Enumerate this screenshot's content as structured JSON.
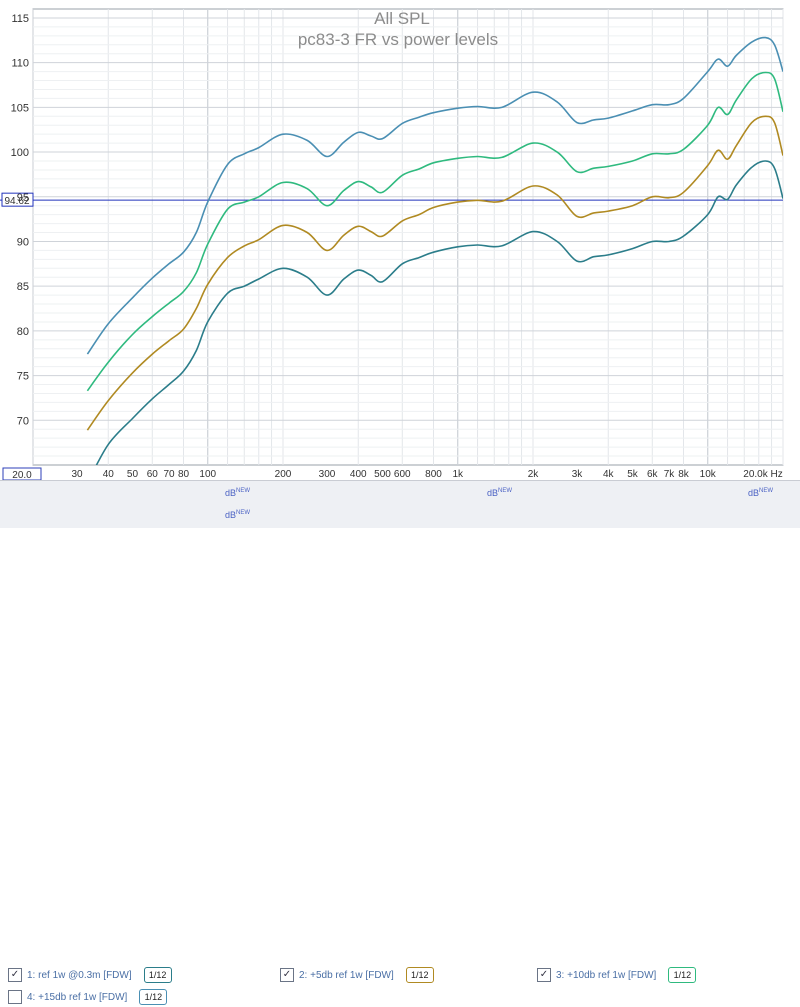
{
  "title": "All SPL",
  "subtitle": "pc83-3 FR vs power levels",
  "chart_data": {
    "type": "line",
    "title": "All SPL",
    "subtitle": "pc83-3 FR vs power levels",
    "xscale": "log",
    "xlim": [
      20,
      20000
    ],
    "ylim": [
      65,
      116
    ],
    "yticks": [
      70,
      75,
      80,
      85,
      90,
      95,
      100,
      105,
      110,
      115
    ],
    "xticks": [
      {
        "v": 30,
        "t": "30"
      },
      {
        "v": 40,
        "t": "40"
      },
      {
        "v": 50,
        "t": "50"
      },
      {
        "v": 60,
        "t": "60"
      },
      {
        "v": 70,
        "t": "70"
      },
      {
        "v": 80,
        "t": "80"
      },
      {
        "v": 100,
        "t": "100"
      },
      {
        "v": 200,
        "t": "200"
      },
      {
        "v": 300,
        "t": "300"
      },
      {
        "v": 400,
        "t": "400"
      },
      {
        "v": 500,
        "t": "500"
      },
      {
        "v": 600,
        "t": "600"
      },
      {
        "v": 800,
        "t": "800"
      },
      {
        "v": 1000,
        "t": "1k"
      },
      {
        "v": 2000,
        "t": "2k"
      },
      {
        "v": 3000,
        "t": "3k"
      },
      {
        "v": 4000,
        "t": "4k"
      },
      {
        "v": 5000,
        "t": "5k"
      },
      {
        "v": 6000,
        "t": "6k"
      },
      {
        "v": 7000,
        "t": "7k"
      },
      {
        "v": 8000,
        "t": "8k"
      },
      {
        "v": 10000,
        "t": "10k"
      },
      {
        "v": 20000,
        "t": "20.0k Hz"
      }
    ],
    "x_start_label": "20.0",
    "cursor_value": 94.62,
    "cursor_label": "94.62",
    "grid": true,
    "legend_position": "bottom",
    "series": [
      {
        "name": "1: ref 1w @0.3m [FDW]",
        "color": "#2b7d8a",
        "points": [
          [
            33,
            63.0
          ],
          [
            40,
            67.3
          ],
          [
            50,
            70.2
          ],
          [
            60,
            72.4
          ],
          [
            70,
            74.0
          ],
          [
            80,
            75.5
          ],
          [
            90,
            77.8
          ],
          [
            100,
            81.0
          ],
          [
            120,
            84.2
          ],
          [
            140,
            85.0
          ],
          [
            160,
            85.8
          ],
          [
            200,
            87.0
          ],
          [
            250,
            86.0
          ],
          [
            300,
            84.0
          ],
          [
            350,
            85.8
          ],
          [
            400,
            86.8
          ],
          [
            450,
            86.2
          ],
          [
            500,
            85.5
          ],
          [
            600,
            87.5
          ],
          [
            700,
            88.2
          ],
          [
            800,
            88.8
          ],
          [
            1000,
            89.4
          ],
          [
            1200,
            89.6
          ],
          [
            1500,
            89.5
          ],
          [
            2000,
            91.1
          ],
          [
            2500,
            90.0
          ],
          [
            3000,
            87.8
          ],
          [
            3500,
            88.3
          ],
          [
            4000,
            88.5
          ],
          [
            5000,
            89.2
          ],
          [
            6000,
            90.0
          ],
          [
            7000,
            90.0
          ],
          [
            8000,
            90.6
          ],
          [
            10000,
            93.0
          ],
          [
            11000,
            95.0
          ],
          [
            12000,
            94.7
          ],
          [
            13000,
            96.3
          ],
          [
            15000,
            98.3
          ],
          [
            17000,
            99.0
          ],
          [
            18500,
            98.2
          ],
          [
            20000,
            94.8
          ]
        ]
      },
      {
        "name": "2: +5db ref 1w [FDW]",
        "color": "#b08a22",
        "points": [
          [
            33,
            68.9
          ],
          [
            40,
            72.2
          ],
          [
            50,
            75.3
          ],
          [
            60,
            77.4
          ],
          [
            70,
            78.9
          ],
          [
            80,
            80.2
          ],
          [
            90,
            82.5
          ],
          [
            100,
            85.2
          ],
          [
            120,
            88.2
          ],
          [
            140,
            89.5
          ],
          [
            160,
            90.2
          ],
          [
            200,
            91.8
          ],
          [
            250,
            91.0
          ],
          [
            300,
            89.0
          ],
          [
            350,
            90.7
          ],
          [
            400,
            91.7
          ],
          [
            450,
            91.1
          ],
          [
            500,
            90.6
          ],
          [
            600,
            92.3
          ],
          [
            700,
            93.0
          ],
          [
            800,
            93.8
          ],
          [
            1000,
            94.4
          ],
          [
            1200,
            94.6
          ],
          [
            1500,
            94.5
          ],
          [
            2000,
            96.2
          ],
          [
            2500,
            95.2
          ],
          [
            3000,
            92.8
          ],
          [
            3500,
            93.2
          ],
          [
            4000,
            93.4
          ],
          [
            5000,
            94.0
          ],
          [
            6000,
            95.0
          ],
          [
            7000,
            94.9
          ],
          [
            8000,
            95.5
          ],
          [
            10000,
            98.5
          ],
          [
            11000,
            100.2
          ],
          [
            12000,
            99.2
          ],
          [
            13000,
            100.7
          ],
          [
            15000,
            103.3
          ],
          [
            17000,
            104.0
          ],
          [
            18500,
            103.3
          ],
          [
            20000,
            99.6
          ]
        ]
      },
      {
        "name": "3: +10db ref 1w [FDW]",
        "color": "#2fba7f",
        "points": [
          [
            33,
            73.3
          ],
          [
            40,
            76.5
          ],
          [
            50,
            79.6
          ],
          [
            60,
            81.6
          ],
          [
            70,
            83.1
          ],
          [
            80,
            84.4
          ],
          [
            90,
            86.5
          ],
          [
            100,
            89.7
          ],
          [
            120,
            93.6
          ],
          [
            140,
            94.4
          ],
          [
            160,
            95.0
          ],
          [
            200,
            96.6
          ],
          [
            250,
            95.9
          ],
          [
            300,
            94.0
          ],
          [
            350,
            95.7
          ],
          [
            400,
            96.7
          ],
          [
            450,
            96.1
          ],
          [
            500,
            95.5
          ],
          [
            600,
            97.4
          ],
          [
            700,
            98.1
          ],
          [
            800,
            98.8
          ],
          [
            1000,
            99.3
          ],
          [
            1200,
            99.5
          ],
          [
            1500,
            99.4
          ],
          [
            2000,
            101.0
          ],
          [
            2500,
            100.0
          ],
          [
            3000,
            97.8
          ],
          [
            3500,
            98.2
          ],
          [
            4000,
            98.4
          ],
          [
            5000,
            99.0
          ],
          [
            6000,
            99.8
          ],
          [
            7000,
            99.8
          ],
          [
            8000,
            100.3
          ],
          [
            10000,
            103.0
          ],
          [
            11000,
            105.0
          ],
          [
            12000,
            104.2
          ],
          [
            13000,
            105.8
          ],
          [
            15000,
            108.2
          ],
          [
            17000,
            108.9
          ],
          [
            18500,
            108.2
          ],
          [
            20000,
            104.5
          ]
        ]
      },
      {
        "name": "4: +15db ref 1w [FDW]",
        "color": "#4a8fb3",
        "points": [
          [
            33,
            77.4
          ],
          [
            40,
            80.8
          ],
          [
            50,
            83.7
          ],
          [
            60,
            85.9
          ],
          [
            70,
            87.5
          ],
          [
            80,
            88.8
          ],
          [
            90,
            91.0
          ],
          [
            100,
            94.4
          ],
          [
            120,
            98.6
          ],
          [
            140,
            99.8
          ],
          [
            160,
            100.5
          ],
          [
            200,
            102.0
          ],
          [
            250,
            101.3
          ],
          [
            300,
            99.5
          ],
          [
            350,
            101.1
          ],
          [
            400,
            102.2
          ],
          [
            450,
            101.8
          ],
          [
            500,
            101.5
          ],
          [
            600,
            103.2
          ],
          [
            700,
            103.9
          ],
          [
            800,
            104.4
          ],
          [
            1000,
            104.9
          ],
          [
            1200,
            105.1
          ],
          [
            1500,
            105.0
          ],
          [
            2000,
            106.7
          ],
          [
            2500,
            105.6
          ],
          [
            3000,
            103.3
          ],
          [
            3500,
            103.6
          ],
          [
            4000,
            103.8
          ],
          [
            5000,
            104.6
          ],
          [
            6000,
            105.3
          ],
          [
            7000,
            105.3
          ],
          [
            8000,
            106.0
          ],
          [
            10000,
            109.0
          ],
          [
            11000,
            110.4
          ],
          [
            12000,
            109.6
          ],
          [
            13000,
            110.8
          ],
          [
            15000,
            112.3
          ],
          [
            17000,
            112.8
          ],
          [
            18500,
            112.0
          ],
          [
            20000,
            109.0
          ]
        ]
      }
    ]
  },
  "legend": [
    {
      "checked": "✓",
      "label": "1: ref 1w @0.3m [FDW]",
      "smoothing": "1/12",
      "unit": "dB",
      "unit_sup": "NEW",
      "color": "#2b7d8a"
    },
    {
      "checked": "✓",
      "label": "2: +5db ref 1w [FDW]",
      "smoothing": "1/12",
      "unit": "dB",
      "unit_sup": "NEW",
      "color": "#b08a22"
    },
    {
      "checked": "✓",
      "label": "3: +10db ref 1w [FDW]",
      "smoothing": "1/12",
      "unit": "dB",
      "unit_sup": "NEW",
      "color": "#2fba7f"
    },
    {
      "checked": "",
      "label": "4: +15db ref 1w [FDW]",
      "smoothing": "1/12",
      "unit": "dB",
      "unit_sup": "NEW",
      "color": "#4a8fb3"
    }
  ]
}
